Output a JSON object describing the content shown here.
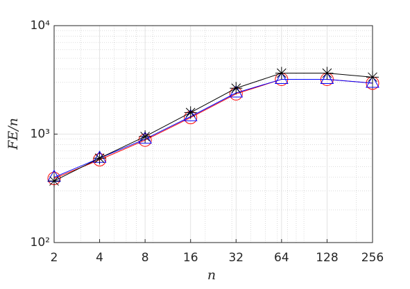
{
  "chart_data": {
    "type": "line",
    "xlabel": "n",
    "ylabel": "FE/n",
    "x": [
      2,
      4,
      8,
      16,
      32,
      64,
      128,
      256
    ],
    "xlim": [
      2,
      256
    ],
    "xticks": [
      2,
      4,
      8,
      16,
      32,
      64,
      128,
      256
    ],
    "xscale": "log",
    "ylim": [
      100,
      10000
    ],
    "yscale": "log",
    "yticks": [
      {
        "value": 100,
        "label": "10²"
      },
      {
        "value": 1000,
        "label": "10³"
      },
      {
        "value": 10000,
        "label": "10⁴"
      }
    ],
    "grid": true,
    "minor_grid": true,
    "series": [
      {
        "color": "#ff0000",
        "marker": "circle",
        "values": [
          390,
          580,
          880,
          1420,
          2350,
          3200,
          3200,
          2950
        ]
      },
      {
        "color": "#0000ff",
        "marker": "triangle",
        "values": [
          400,
          600,
          900,
          1450,
          2400,
          3200,
          3200,
          2950
        ]
      },
      {
        "color": "#000000",
        "marker": "asterisk",
        "values": [
          370,
          600,
          950,
          1580,
          2650,
          3650,
          3650,
          3350
        ]
      }
    ]
  }
}
